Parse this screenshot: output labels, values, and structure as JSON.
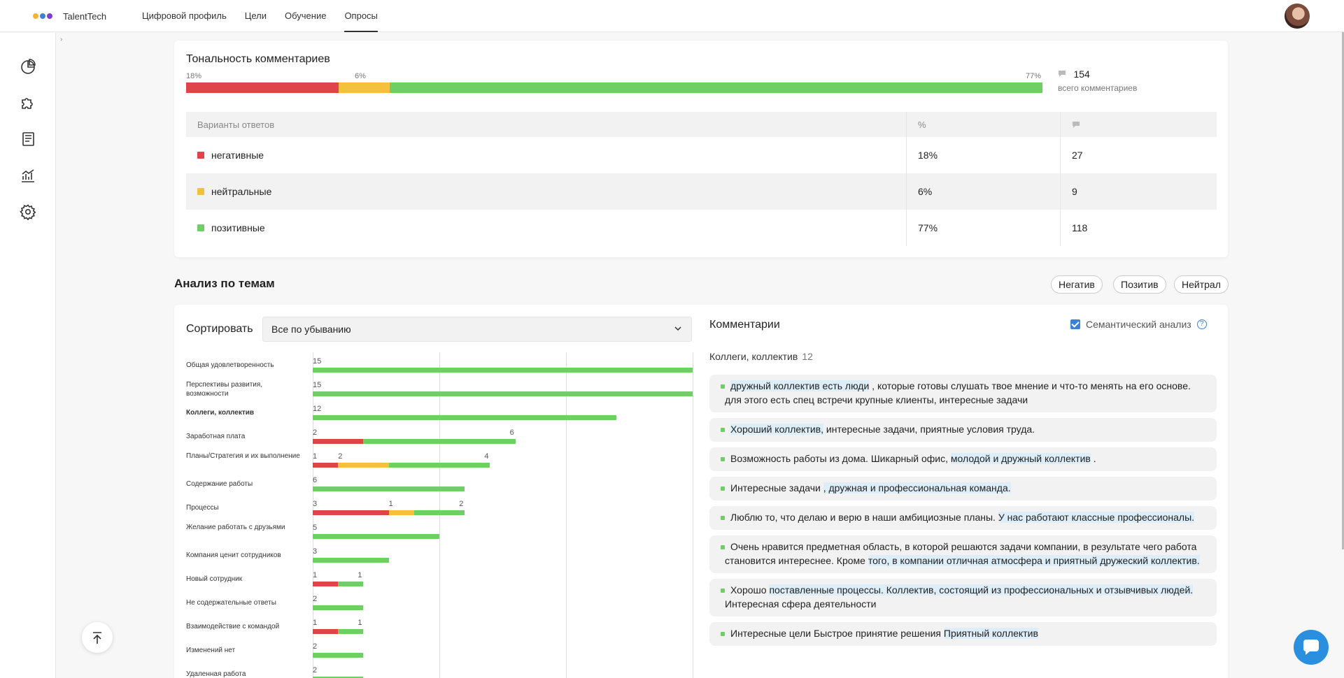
{
  "header": {
    "brand": "TalentTech",
    "logo_colors": [
      "#f2b233",
      "#3b82d6",
      "#7b3fd0"
    ],
    "nav": [
      {
        "label": "Цифровой профиль",
        "active": false
      },
      {
        "label": "Цели",
        "active": false
      },
      {
        "label": "Обучение",
        "active": false
      },
      {
        "label": "Опросы",
        "active": true
      }
    ]
  },
  "sidebar": {
    "icons": [
      "pie-chart-icon",
      "puzzle-icon",
      "book-icon",
      "analytics-icon",
      "gear-icon"
    ],
    "collapse_icon": "chevron-right-icon"
  },
  "colors": {
    "negative": "#e0444b",
    "neutral": "#f2c23c",
    "positive": "#6fcf66"
  },
  "tone": {
    "title": "Тональность комментариев",
    "segments": [
      {
        "key": "negative",
        "pct": 18,
        "label": "18%"
      },
      {
        "key": "neutral",
        "pct": 6,
        "label": "6%"
      },
      {
        "key": "positive",
        "pct": 77,
        "label": "77%"
      }
    ],
    "total_count": "154",
    "total_label": "всего комментариев",
    "table": {
      "header": {
        "variant": "Варианты ответов",
        "pct": "%",
        "count_icon": "comment-icon"
      },
      "rows": [
        {
          "key": "negative",
          "label": "негативные",
          "pct": "18%",
          "count": "27"
        },
        {
          "key": "neutral",
          "label": "нейтральные",
          "pct": "6%",
          "count": "9"
        },
        {
          "key": "positive",
          "label": "позитивные",
          "pct": "77%",
          "count": "118"
        }
      ]
    }
  },
  "topics": {
    "title": "Анализ по темам",
    "filters": [
      "Негатив",
      "Позитив",
      "Нейтрал"
    ],
    "sort_label": "Сортировать",
    "sort_value": "Все по убыванию",
    "chart_data": {
      "type": "bar",
      "stacked": true,
      "orientation": "horizontal",
      "xlim": [
        0,
        15
      ],
      "categories": [
        "Общая удовлетворенность",
        "Перспективы развития, возможности",
        "Коллеги, коллектив",
        "Заработная плата",
        "Планы/Стратегия и их выполнение",
        "Содержание работы",
        "Процессы",
        "Желание работать с друзьями",
        "Компания ценит сотрудников",
        "Новый сотрудник",
        "Не содержательные ответы",
        "Взаимодействие с командой",
        "Изменений нет",
        "Удаленная работа"
      ],
      "bold_category": "Коллеги, коллектив",
      "series": [
        {
          "name": "негативные",
          "values": [
            0,
            0,
            0,
            2,
            1,
            0,
            3,
            0,
            0,
            1,
            0,
            1,
            0,
            0
          ]
        },
        {
          "name": "нейтральные",
          "values": [
            0,
            0,
            0,
            0,
            2,
            0,
            1,
            0,
            0,
            0,
            0,
            0,
            0,
            0
          ]
        },
        {
          "name": "позитивные",
          "values": [
            15,
            15,
            12,
            6,
            4,
            6,
            2,
            5,
            3,
            1,
            2,
            1,
            2,
            2
          ]
        }
      ]
    }
  },
  "comments": {
    "title": "Комментарии",
    "semantic_label": "Семантический анализ",
    "semantic_checked": true,
    "help": "?",
    "group_title": "Коллеги, коллектив",
    "group_count": "12",
    "items": [
      [
        {
          "t": "дружный коллектив есть люди",
          "h": true
        },
        {
          "t": " , которые готовы слушать твое мнение и что-то менять на его основе. для этого есть спец встречи крупные клиенты, интересные задачи",
          "h": false
        }
      ],
      [
        {
          "t": "Хороший коллектив,",
          "h": true
        },
        {
          "t": " интересные задачи, приятные условия труда.",
          "h": false
        }
      ],
      [
        {
          "t": "Возможность работы из дома. Шикарный офис, ",
          "h": false
        },
        {
          "t": "молодой и дружный коллектив",
          "h": true
        },
        {
          "t": " .",
          "h": false
        }
      ],
      [
        {
          "t": "Интересные задачи ",
          "h": false
        },
        {
          "t": ", дружная и профессиональная команда.",
          "h": true
        }
      ],
      [
        {
          "t": "Люблю то, что делаю и верю в наши амбициозные планы. ",
          "h": false
        },
        {
          "t": "У нас работают классные профессионалы.",
          "h": true
        }
      ],
      [
        {
          "t": "Очень нравится предметная область, в которой решаются задачи компании, в результате чего работа становится интереснее. Кроме ",
          "h": false
        },
        {
          "t": "того, в компании отличная атмосфера и приятный дружеский коллектив.",
          "h": true
        }
      ],
      [
        {
          "t": "Хорошо ",
          "h": false
        },
        {
          "t": "поставленные процессы. Коллектив, состоящий из профессиональных и отзывчивых людей.",
          "h": true
        },
        {
          "t": " Интересная сфера деятельности",
          "h": false
        }
      ],
      [
        {
          "t": "Интересные цели Быстрое принятие решения ",
          "h": false
        },
        {
          "t": "Приятный коллектив",
          "h": true
        }
      ]
    ]
  },
  "floating": {
    "back_to_top_icon": "arrow-up-icon",
    "chat_icon": "chat-bubble-icon"
  }
}
